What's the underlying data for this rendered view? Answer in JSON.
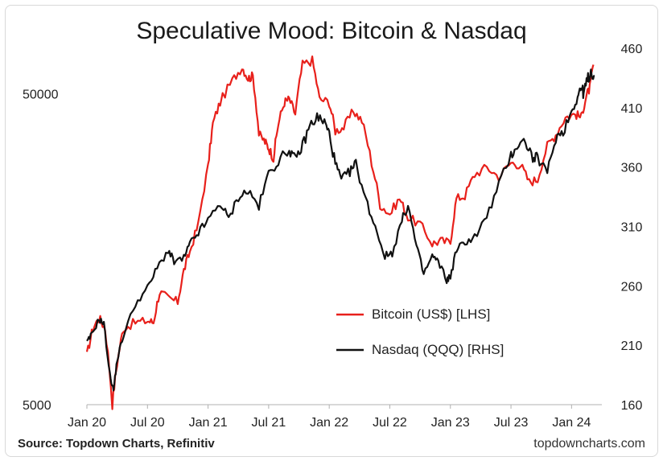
{
  "chart_data": {
    "type": "line",
    "title": "Speculative Mood: Bitcoin & Nasdaq",
    "x_tick_labels": [
      "Jan 20",
      "Jul 20",
      "Jan 21",
      "Jul 21",
      "Jan 22",
      "Jul 22",
      "Jan 23",
      "Jul 23",
      "Jan 24"
    ],
    "x_range": [
      2020.0,
      2024.25
    ],
    "left_axis": {
      "scale": "log",
      "range": [
        5000,
        70000
      ],
      "ticks": [
        5000,
        50000
      ],
      "tick_labels": [
        "5000",
        "50000"
      ]
    },
    "right_axis": {
      "scale": "linear",
      "range": [
        160,
        460
      ],
      "ticks": [
        160,
        210,
        260,
        310,
        360,
        410,
        460
      ],
      "tick_labels": [
        "160",
        "210",
        "260",
        "310",
        "360",
        "410",
        "460"
      ]
    },
    "legend": {
      "placement": "right-middle"
    },
    "series": [
      {
        "name": "Bitcoin (US$) [LHS]",
        "axis": "left",
        "color": "#e8201b",
        "points": [
          [
            2020.0,
            7200
          ],
          [
            2020.05,
            8800
          ],
          [
            2020.1,
            9500
          ],
          [
            2020.15,
            8800
          ],
          [
            2020.21,
            5000
          ],
          [
            2020.25,
            6800
          ],
          [
            2020.3,
            8800
          ],
          [
            2020.4,
            9200
          ],
          [
            2020.5,
            9300
          ],
          [
            2020.55,
            9200
          ],
          [
            2020.6,
            11500
          ],
          [
            2020.67,
            11000
          ],
          [
            2020.75,
            10700
          ],
          [
            2020.8,
            13500
          ],
          [
            2020.85,
            15500
          ],
          [
            2020.92,
            19000
          ],
          [
            2021.0,
            29000
          ],
          [
            2021.04,
            40000
          ],
          [
            2021.1,
            47000
          ],
          [
            2021.2,
            55000
          ],
          [
            2021.28,
            61000
          ],
          [
            2021.33,
            56000
          ],
          [
            2021.37,
            57000
          ],
          [
            2021.42,
            37000
          ],
          [
            2021.47,
            35000
          ],
          [
            2021.5,
            33500
          ],
          [
            2021.54,
            31000
          ],
          [
            2021.58,
            40000
          ],
          [
            2021.63,
            47000
          ],
          [
            2021.67,
            48000
          ],
          [
            2021.72,
            43000
          ],
          [
            2021.78,
            62000
          ],
          [
            2021.86,
            64000
          ],
          [
            2021.92,
            48000
          ],
          [
            2022.0,
            47000
          ],
          [
            2022.05,
            38000
          ],
          [
            2022.12,
            39000
          ],
          [
            2022.2,
            44000
          ],
          [
            2022.27,
            41000
          ],
          [
            2022.35,
            30000
          ],
          [
            2022.42,
            22000
          ],
          [
            2022.5,
            20500
          ],
          [
            2022.58,
            23000
          ],
          [
            2022.65,
            20000
          ],
          [
            2022.75,
            19000
          ],
          [
            2022.85,
            16500
          ],
          [
            2022.92,
            16800
          ],
          [
            2023.0,
            16600
          ],
          [
            2023.05,
            23000
          ],
          [
            2023.12,
            23500
          ],
          [
            2023.2,
            27500
          ],
          [
            2023.3,
            29000
          ],
          [
            2023.4,
            27000
          ],
          [
            2023.5,
            30000
          ],
          [
            2023.58,
            29500
          ],
          [
            2023.65,
            26000
          ],
          [
            2023.72,
            26500
          ],
          [
            2023.8,
            34000
          ],
          [
            2023.87,
            37000
          ],
          [
            2023.95,
            42000
          ],
          [
            2024.03,
            43000
          ],
          [
            2024.08,
            42000
          ],
          [
            2024.12,
            49000
          ],
          [
            2024.15,
            52000
          ],
          [
            2024.18,
            62000
          ]
        ]
      },
      {
        "name": "Nasdaq (QQQ) [RHS]",
        "axis": "right",
        "color": "#111111",
        "points": [
          [
            2020.0,
            212
          ],
          [
            2020.04,
            219
          ],
          [
            2020.1,
            232
          ],
          [
            2020.14,
            228
          ],
          [
            2020.19,
            185
          ],
          [
            2020.22,
            172
          ],
          [
            2020.25,
            198
          ],
          [
            2020.3,
            218
          ],
          [
            2020.4,
            245
          ],
          [
            2020.5,
            258
          ],
          [
            2020.58,
            275
          ],
          [
            2020.67,
            290
          ],
          [
            2020.72,
            280
          ],
          [
            2020.8,
            283
          ],
          [
            2020.85,
            295
          ],
          [
            2020.92,
            305
          ],
          [
            2021.0,
            315
          ],
          [
            2021.1,
            330
          ],
          [
            2021.17,
            316
          ],
          [
            2021.25,
            335
          ],
          [
            2021.33,
            340
          ],
          [
            2021.42,
            327
          ],
          [
            2021.5,
            355
          ],
          [
            2021.58,
            365
          ],
          [
            2021.67,
            375
          ],
          [
            2021.72,
            366
          ],
          [
            2021.78,
            378
          ],
          [
            2021.84,
            395
          ],
          [
            2021.9,
            402
          ],
          [
            2021.96,
            398
          ],
          [
            2022.0,
            388
          ],
          [
            2022.05,
            363
          ],
          [
            2022.1,
            349
          ],
          [
            2022.17,
            356
          ],
          [
            2022.22,
            363
          ],
          [
            2022.3,
            333
          ],
          [
            2022.38,
            310
          ],
          [
            2022.46,
            285
          ],
          [
            2022.52,
            288
          ],
          [
            2022.6,
            315
          ],
          [
            2022.65,
            328
          ],
          [
            2022.72,
            293
          ],
          [
            2022.78,
            270
          ],
          [
            2022.85,
            285
          ],
          [
            2022.9,
            280
          ],
          [
            2022.97,
            265
          ],
          [
            2023.0,
            268
          ],
          [
            2023.05,
            290
          ],
          [
            2023.12,
            297
          ],
          [
            2023.2,
            301
          ],
          [
            2023.3,
            318
          ],
          [
            2023.4,
            345
          ],
          [
            2023.5,
            370
          ],
          [
            2023.55,
            378
          ],
          [
            2023.62,
            382
          ],
          [
            2023.68,
            367
          ],
          [
            2023.72,
            368
          ],
          [
            2023.8,
            355
          ],
          [
            2023.87,
            385
          ],
          [
            2023.93,
            390
          ],
          [
            2024.0,
            407
          ],
          [
            2024.05,
            420
          ],
          [
            2024.08,
            427
          ],
          [
            2024.1,
            422
          ],
          [
            2024.13,
            433
          ],
          [
            2024.16,
            440
          ],
          [
            2024.19,
            437
          ]
        ]
      }
    ]
  },
  "footer": {
    "source": "Source: Topdown Charts, Refinitiv",
    "brand": "topdowncharts.com"
  }
}
